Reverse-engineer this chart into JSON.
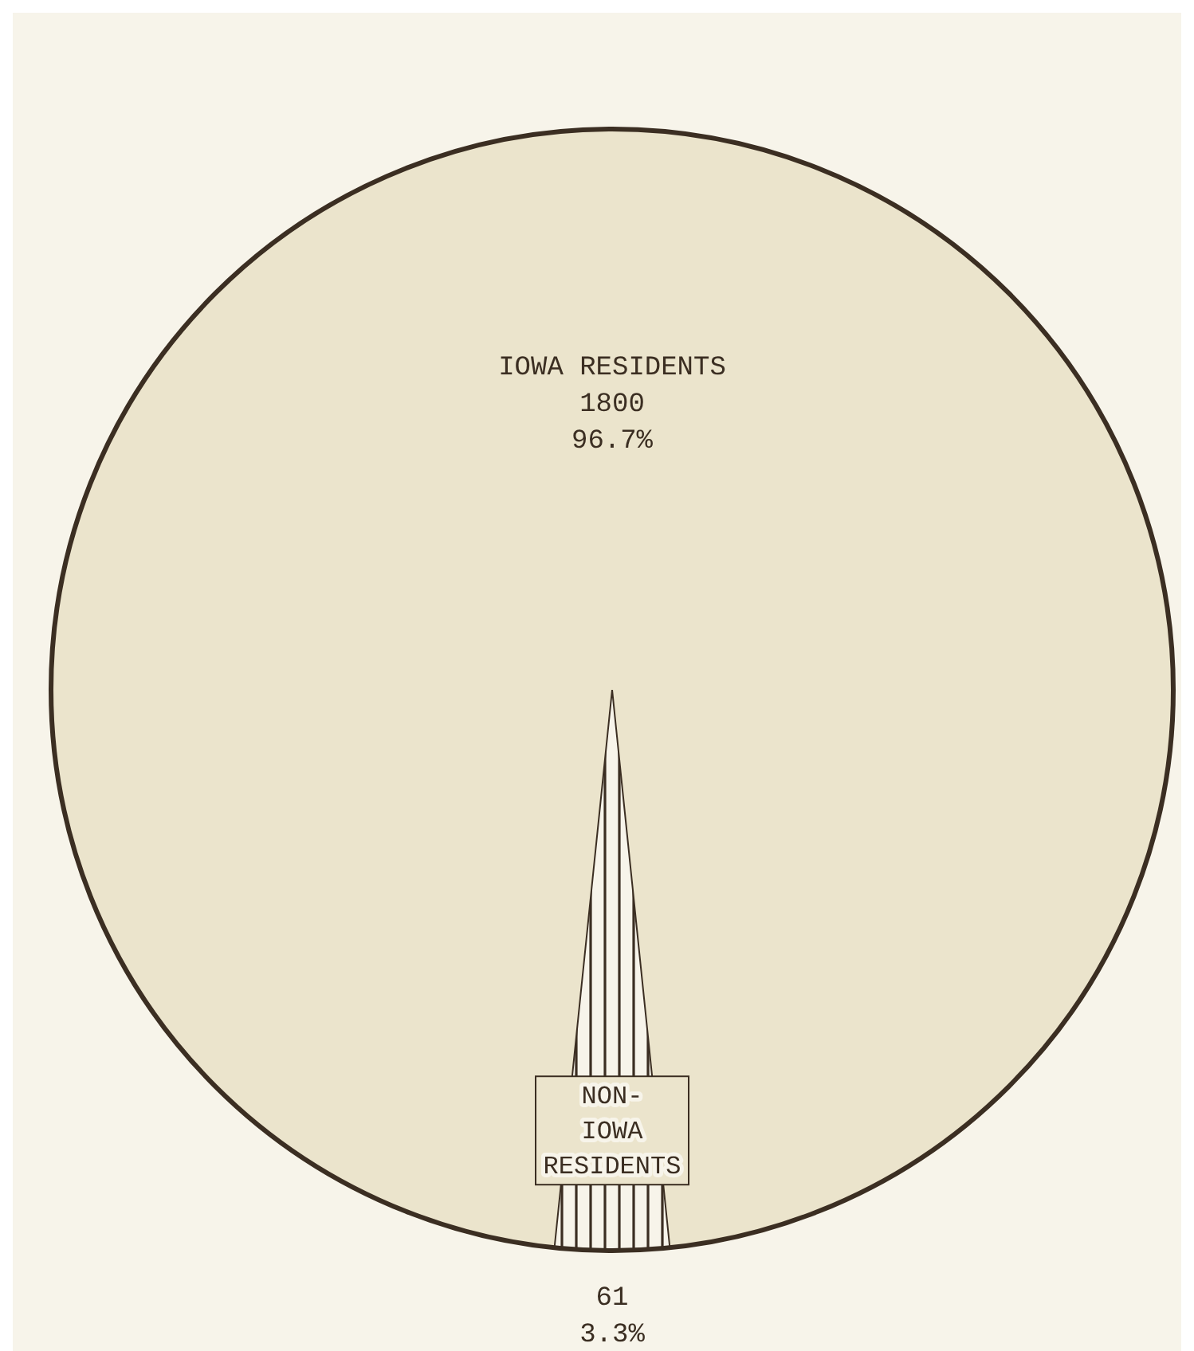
{
  "chart_data": {
    "type": "pie",
    "categories": [
      "IOWA RESIDENTS",
      "NON-IOWA RESIDENTS"
    ],
    "values": [
      1800,
      61
    ],
    "value_labels": [
      "1800\n96.7%",
      "61\n3.3%"
    ],
    "colors": [
      "#ebe4cc",
      "#3b2e22"
    ]
  }
}
